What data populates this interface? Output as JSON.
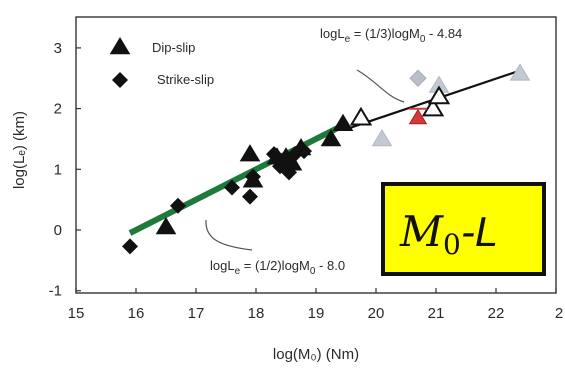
{
  "chart_data": {
    "type": "scatter",
    "xlabel": "log(M₀) (Nm)",
    "ylabel": "log(Lₑ) (km)",
    "xlim": [
      15,
      23
    ],
    "ylim": [
      -1,
      3.5
    ],
    "x_ticks": [
      "15",
      "16",
      "17",
      "18",
      "19",
      "20",
      "21",
      "22",
      "2"
    ],
    "y_ticks": [
      "-1",
      "0",
      "1",
      "2",
      "3"
    ],
    "legend": [
      {
        "label": "Dip-slip",
        "marker": "triangle"
      },
      {
        "label": "Strike-slip",
        "marker": "diamond"
      }
    ],
    "series": [
      {
        "name": "Dip-slip",
        "marker": "filled-triangle",
        "color": "#111111",
        "points": [
          [
            16.5,
            0.05
          ],
          [
            17.9,
            1.25
          ],
          [
            17.95,
            0.82
          ],
          [
            18.35,
            1.2
          ],
          [
            18.5,
            1.2
          ],
          [
            18.6,
            1.1
          ],
          [
            18.75,
            1.35
          ],
          [
            19.25,
            1.5
          ],
          [
            19.45,
            1.75
          ]
        ]
      },
      {
        "name": "Strike-slip",
        "marker": "filled-diamond",
        "color": "#111111",
        "points": [
          [
            15.9,
            -0.27
          ],
          [
            16.7,
            0.4
          ],
          [
            17.6,
            0.7
          ],
          [
            17.9,
            0.55
          ],
          [
            17.95,
            0.88
          ],
          [
            18.3,
            1.25
          ],
          [
            18.4,
            1.05
          ],
          [
            18.55,
            0.95
          ],
          [
            18.65,
            1.25
          ],
          [
            18.8,
            1.3
          ]
        ]
      },
      {
        "name": "Dip-slip (open)",
        "marker": "open-triangle",
        "color": "#111111",
        "points": [
          [
            19.75,
            1.85
          ],
          [
            20.95,
            2.0
          ],
          [
            21.05,
            2.2
          ]
        ]
      },
      {
        "name": "Red",
        "marker": "red-triangle",
        "color": "#d23a3a",
        "points": [
          [
            20.7,
            1.85
          ]
        ]
      },
      {
        "name": "Gray",
        "marker": "gray-mixed",
        "color": "#b7bec7",
        "points": [
          {
            "x": 20.1,
            "y": 1.5,
            "shape": "triangle"
          },
          {
            "x": 20.7,
            "y": 2.5,
            "shape": "diamond"
          },
          {
            "x": 21.05,
            "y": 2.38,
            "shape": "triangle"
          },
          {
            "x": 22.4,
            "y": 2.58,
            "shape": "triangle"
          }
        ]
      }
    ],
    "fit_lines": [
      {
        "label": "logLₑ = (1/2)logM₀ - 8.0",
        "x_range": [
          15.9,
          19.5
        ],
        "color": "#1e7a3a",
        "label_main": "logL",
        "label_sub": "e",
        "label_rest": " = (1/2)logM",
        "label_sub2": "0",
        "label_tail": " - 8.0"
      },
      {
        "label": "logLₑ = (1/3)logM₀ - 4.84",
        "x_range": [
          19.5,
          22.4
        ],
        "color": "#111111",
        "label_main": "logL",
        "label_sub": "e",
        "label_rest": " = (1/3)logM",
        "label_sub2": "0",
        "label_tail": " - 4.84"
      }
    ],
    "badge": {
      "main": "M",
      "sub": "0",
      "tail": "-L",
      "background": "#ffff00",
      "border": "#111111"
    }
  }
}
